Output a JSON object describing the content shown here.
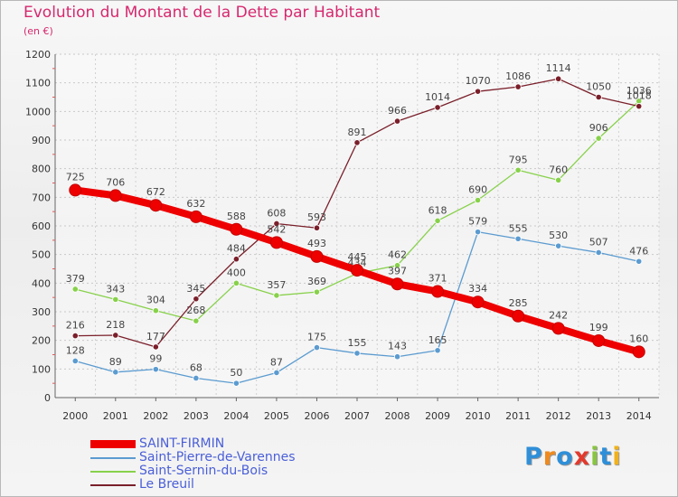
{
  "title": "Evolution du Montant de la Dette par Habitant",
  "subtitle": "(en €)",
  "logo_text": "Proxiti",
  "chart_data": {
    "type": "line",
    "title": "Evolution du Montant de la Dette par Habitant",
    "subtitle": "(en €)",
    "xlabel": "",
    "ylabel": "",
    "x": [
      2000,
      2001,
      2002,
      2003,
      2004,
      2005,
      2006,
      2007,
      2008,
      2009,
      2010,
      2011,
      2012,
      2013,
      2014
    ],
    "ylim": [
      0,
      1200
    ],
    "yticks": [
      0,
      100,
      200,
      300,
      400,
      500,
      600,
      700,
      800,
      900,
      1000,
      1100,
      1200
    ],
    "grid": "horizontal",
    "legend_position": "bottom-left",
    "series": [
      {
        "name": "SAINT-FIRMIN",
        "color": "#ee0000",
        "values": [
          725,
          706,
          672,
          632,
          588,
          542,
          493,
          445,
          397,
          371,
          334,
          285,
          242,
          199,
          160
        ]
      },
      {
        "name": "Saint-Pierre-de-Varennes",
        "color": "#5b9bd0",
        "values": [
          128,
          89,
          99,
          68,
          50,
          87,
          175,
          155,
          143,
          165,
          579,
          555,
          530,
          507,
          476
        ]
      },
      {
        "name": "Saint-Sernin-du-Bois",
        "color": "#88d14b",
        "values": [
          379,
          343,
          304,
          268,
          400,
          357,
          369,
          434,
          462,
          618,
          690,
          795,
          760,
          906,
          1036
        ]
      },
      {
        "name": "Le Breuil",
        "color": "#7a1f2a",
        "values": [
          216,
          218,
          177,
          345,
          484,
          608,
          593,
          891,
          966,
          1014,
          1070,
          1086,
          1114,
          1050,
          1018
        ]
      }
    ]
  }
}
